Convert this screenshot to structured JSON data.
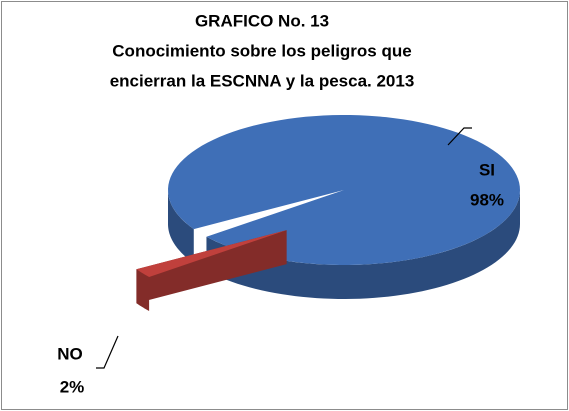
{
  "chart_data": {
    "type": "pie",
    "title": [
      "GRAFICO No. 13",
      "Conocimiento sobre los peligros que",
      "encierran la ESCNNA y la pesca. 2013"
    ],
    "categories": [
      "SI",
      "NO"
    ],
    "values": [
      98,
      2
    ],
    "value_labels": [
      "98%",
      "2%"
    ],
    "colors": [
      "#3f6fb7",
      "#c0403c"
    ],
    "exploded": [
      false,
      true
    ]
  }
}
